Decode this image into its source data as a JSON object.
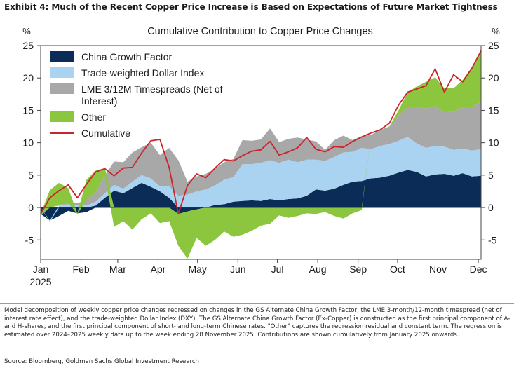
{
  "header": {
    "exhibit_title": "Exhibit 4: Much of the Recent Copper Price Increase is Based on Expectations of Future Market Tightness"
  },
  "footnote": "Model decomposition of weekly copper price changes regressed on changes in the GS Alternate China Growth Factor, the LME 3-month/12-month timespread (net of interest rate effect), and the trade-weighted Dollar Index (DXY). The GS Alternate China Growth Factor (Ex-Copper) is constructed as the first principal component of A- and H-shares, and the first principal component of short- and long-term Chinese rates. \"Other\" captures the regression residual and constant term. The regression is estimated over 2024–2025 weekly data up to the week ending 28 November 2025. Contributions are shown cumulatively from January 2025 onwards.",
  "source": "Source: Bloomberg, Goldman Sachs Global Investment Research",
  "colors": {
    "china": "#0a2c57",
    "dollar": "#a9d3f0",
    "lme": "#a8a8a8",
    "other": "#8cc63f",
    "cumulative": "#c8252c"
  },
  "chart_data": {
    "type": "area",
    "stacked": true,
    "title": "Cumulative Contribution to Copper Price Changes",
    "ylabel_left": "%",
    "ylabel_right": "%",
    "ylim": [
      -8,
      25
    ],
    "yticks": [
      -5,
      0,
      5,
      10,
      15,
      20,
      25
    ],
    "xlim": [
      0,
      48
    ],
    "xticks": [
      {
        "label": "Jan",
        "x": 0
      },
      {
        "label": "Feb",
        "x": 4.4
      },
      {
        "label": "Mar",
        "x": 8.4
      },
      {
        "label": "Apr",
        "x": 12.8
      },
      {
        "label": "May",
        "x": 17.1
      },
      {
        "label": "Jun",
        "x": 21.5
      },
      {
        "label": "Jul",
        "x": 25.8
      },
      {
        "label": "Aug",
        "x": 30.2
      },
      {
        "label": "Sep",
        "x": 34.6
      },
      {
        "label": "Oct",
        "x": 38.9
      },
      {
        "label": "Nov",
        "x": 43.3
      },
      {
        "label": "Dec",
        "x": 47.7
      }
    ],
    "year_label": "2025",
    "legend_position": "top-left",
    "series": [
      {
        "name": "China Growth Factor",
        "key": "china",
        "values": [
          -1,
          -2,
          -1.3,
          -0.5,
          -0.9,
          -0.7,
          0.3,
          1.5,
          2.6,
          2.2,
          3,
          3.8,
          3.2,
          2.5,
          1.5,
          -1,
          -0.6,
          -0.3,
          0,
          0.4,
          0.5,
          0.9,
          1,
          1.1,
          1,
          1.3,
          1.1,
          1.3,
          1.4,
          1.8,
          2.8,
          2.6,
          2.9,
          3.5,
          4,
          4.1,
          4.5,
          4.6,
          4.9,
          5.4,
          5.8,
          5.5,
          4.8,
          5.1,
          5.2,
          4.9,
          5.3,
          4.8,
          4.9
        ]
      },
      {
        "name": "Trade-weighted Dollar Index",
        "key": "dollar",
        "values": [
          0,
          -0.2,
          0.3,
          0.5,
          0.4,
          0.3,
          0.6,
          0.7,
          0.9,
          0.7,
          1,
          1.2,
          1.3,
          0.8,
          1.8,
          1.8,
          2,
          2.5,
          2.8,
          3,
          3.8,
          3.8,
          5.7,
          5.6,
          5.9,
          6,
          5.8,
          6.1,
          5.6,
          5.6,
          4.6,
          4.6,
          4.9,
          5,
          4.6,
          5.1,
          4.5,
          4.9,
          4.9,
          4.9,
          5.1,
          4.4,
          4.4,
          4.4,
          4.2,
          4,
          3.8,
          4,
          4.1
        ]
      },
      {
        "name": "LME 3/12M Timespreads (Net of Interest)",
        "key": "lme",
        "values": [
          0,
          0,
          0.1,
          0.2,
          0.3,
          0.8,
          1.5,
          2.7,
          3.6,
          4.1,
          4.5,
          4.3,
          5.5,
          4.8,
          5.9,
          5.5,
          2,
          2.3,
          2.4,
          2.6,
          2.7,
          2.8,
          3.7,
          3.6,
          3.6,
          4.9,
          3.2,
          3.2,
          3.8,
          3.1,
          2.8,
          1.7,
          2.6,
          2.6,
          1.8,
          1.8,
          2.2,
          2.5,
          2.6,
          3.9,
          4.6,
          5.7,
          6.1,
          6.2,
          5.3,
          5.9,
          6.4,
          6.7,
          7.3
        ]
      },
      {
        "name": "Other",
        "key": "other",
        "values": [
          -0.3,
          2.7,
          3.4,
          2.3,
          -0.1,
          3.2,
          3.3,
          1.2,
          -3,
          -2.1,
          -3.4,
          -1.8,
          -0.9,
          -2.4,
          -2.1,
          -4.9,
          -7.3,
          -4.4,
          -5.9,
          -5,
          -3.7,
          -4.5,
          -4.2,
          -3.6,
          -2.8,
          -2.5,
          -1.2,
          -1.6,
          -1.3,
          -0.9,
          -1,
          -0.7,
          -1.3,
          -1.7,
          -0.9,
          -0.4,
          0,
          0,
          0.1,
          0.8,
          2.3,
          3.1,
          4.1,
          4.4,
          3.7,
          3.6,
          4.2,
          6.1,
          7.9
        ]
      },
      {
        "name": "Cumulative",
        "key": "cumulative",
        "type": "line",
        "values": [
          -1,
          1.5,
          2.6,
          3.5,
          1.5,
          3.6,
          5.5,
          6,
          4.9,
          6.1,
          6.2,
          8.4,
          10.3,
          10.5,
          6.2,
          -1,
          3.4,
          5.2,
          4.6,
          6.1,
          7.4,
          7.2,
          8,
          8.7,
          8.9,
          10.2,
          8.1,
          8.6,
          9.2,
          10.8,
          9,
          8.6,
          9.4,
          9.3,
          10.2,
          10.9,
          11.5,
          12,
          13,
          15.8,
          17.8,
          18.3,
          18.8,
          21.4,
          17.8,
          20.5,
          19.4,
          21.5,
          24.2
        ]
      }
    ]
  }
}
